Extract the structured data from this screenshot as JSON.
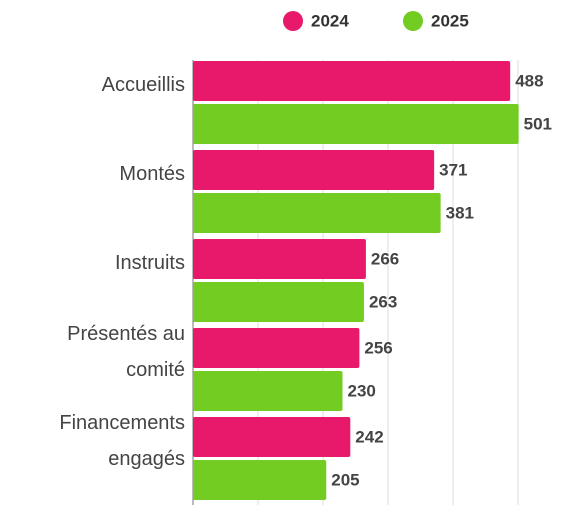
{
  "chart_data": {
    "type": "hbar",
    "categories": [
      "Accueillis",
      "Montés",
      "Instruits",
      "Présentés au comité",
      "Financements engagés"
    ],
    "series": [
      {
        "name": "2024",
        "color": "#e8196b",
        "values": [
          488,
          371,
          266,
          256,
          242
        ]
      },
      {
        "name": "2025",
        "color": "#72cc22",
        "values": [
          501,
          381,
          263,
          230,
          205
        ]
      }
    ],
    "xlim": [
      0,
      500
    ],
    "xticks": [
      0,
      100,
      200,
      300,
      400,
      500
    ],
    "grid": true,
    "legend": "top"
  }
}
